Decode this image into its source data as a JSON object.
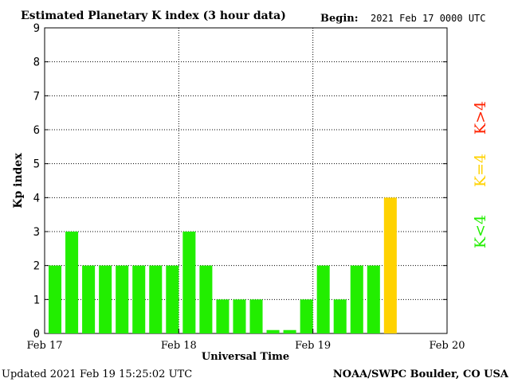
{
  "header": {
    "title": "Estimated Planetary K index (3 hour data)",
    "begin_label": "Begin:",
    "begin_value": "2021 Feb 17 0000 UTC"
  },
  "footer": {
    "updated": "Updated 2021 Feb 19 15:25:02 UTC",
    "source": "NOAA/SWPC Boulder, CO USA"
  },
  "legend": {
    "high": "K>4",
    "equal": "K=4",
    "low": "K<4"
  },
  "colors": {
    "low": "#22ee00",
    "equal": "#ffd200",
    "high": "#ff2200"
  },
  "chart_data": {
    "type": "bar",
    "title": "Estimated Planetary K index (3 hour data)",
    "xlabel": "Universal Time",
    "ylabel": "Kp index",
    "ylim": [
      0,
      9
    ],
    "yticks": [
      "0",
      "1",
      "2",
      "3",
      "4",
      "5",
      "6",
      "7",
      "8",
      "9"
    ],
    "xticks": [
      "Feb 17",
      "Feb 18",
      "Feb 19",
      "Feb 20"
    ],
    "interval_hours": 3,
    "grid": true,
    "values": [
      2,
      3,
      2,
      2,
      2,
      2,
      2,
      2,
      3,
      2,
      1,
      1,
      1,
      0.1,
      0.1,
      1,
      2,
      1,
      2,
      2,
      4
    ]
  }
}
